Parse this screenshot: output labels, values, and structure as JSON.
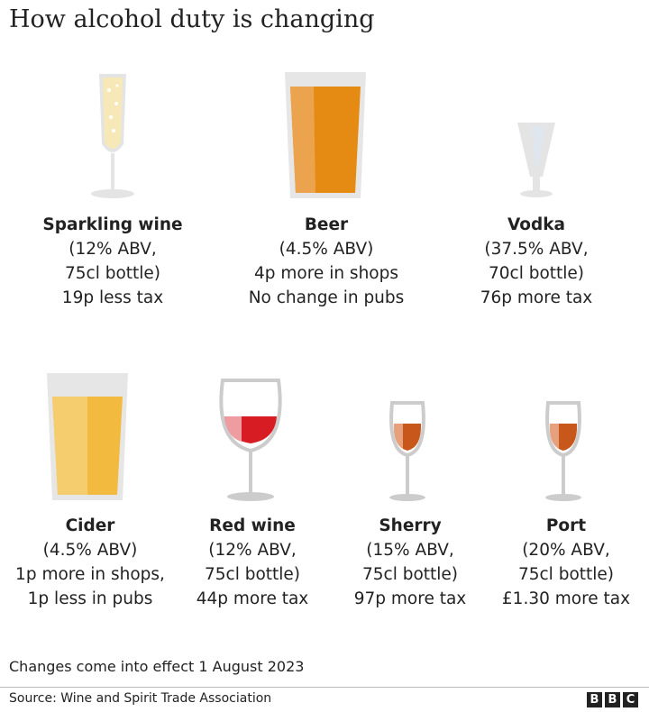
{
  "title": "How alcohol duty is changing",
  "drinks": [
    {
      "name": "Sparkling wine",
      "lines": [
        "(12% ABV,",
        "75cl bottle)",
        "19p less tax"
      ]
    },
    {
      "name": "Beer",
      "lines": [
        "(4.5% ABV)",
        "4p more in shops",
        "No change in pubs"
      ]
    },
    {
      "name": "Vodka",
      "lines": [
        "(37.5% ABV,",
        "70cl bottle)",
        "76p more tax"
      ]
    },
    {
      "name": "Cider",
      "lines": [
        "(4.5% ABV)",
        "1p more in shops,",
        "1p less in pubs"
      ]
    },
    {
      "name": "Red wine",
      "lines": [
        "(12% ABV,",
        "75cl bottle)",
        "44p more tax"
      ]
    },
    {
      "name": "Sherry",
      "lines": [
        "(15% ABV,",
        "75cl bottle)",
        "97p more tax"
      ]
    },
    {
      "name": "Port",
      "lines": [
        "(20% ABV,",
        "75cl bottle)",
        "£1.30 more tax"
      ]
    }
  ],
  "note": "Changes come into effect 1 August 2023",
  "source": "Source: Wine and Spirit Trade Association",
  "logo": [
    "B",
    "B",
    "C"
  ]
}
